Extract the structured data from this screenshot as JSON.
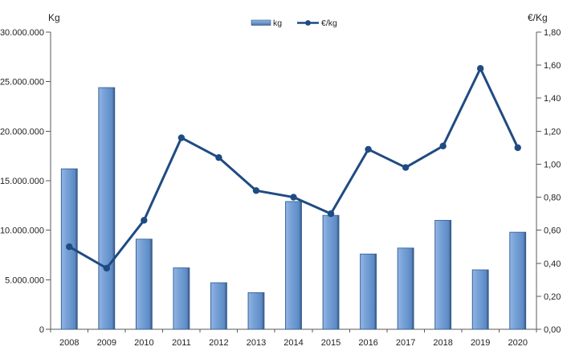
{
  "chart_data": {
    "type": "bar+line combo",
    "categories": [
      "2008",
      "2009",
      "2010",
      "2011",
      "2012",
      "2013",
      "2014",
      "2015",
      "2016",
      "2017",
      "2018",
      "2019",
      "2020"
    ],
    "series": [
      {
        "name": "kg",
        "type": "bar",
        "axis": "left",
        "values": [
          16200000,
          24400000,
          9100000,
          6200000,
          4700000,
          3700000,
          12900000,
          11500000,
          7600000,
          8200000,
          11000000,
          6000000,
          9800000
        ]
      },
      {
        "name": "€/kg",
        "type": "line",
        "axis": "right",
        "values": [
          0.5,
          0.37,
          0.66,
          1.16,
          1.04,
          0.84,
          0.8,
          0.7,
          1.09,
          0.98,
          1.11,
          1.58,
          1.1
        ]
      }
    ],
    "left_axis": {
      "title": "Kg",
      "min": 0,
      "max": 30000000,
      "step": 5000000,
      "tick_labels_top_to_bottom": [
        "30.000.000",
        "25.000.000",
        "20.000.000",
        "15.000.000",
        "10.000.000",
        "5.000.000",
        "0"
      ]
    },
    "right_axis": {
      "title": "€/Kg",
      "min": 0,
      "max": 1.8,
      "step": 0.2,
      "tick_labels_top_to_bottom": [
        "1,80",
        "1,60",
        "1,40",
        "1,20",
        "1,00",
        "0,80",
        "0,60",
        "0,40",
        "0,20",
        "0,00"
      ]
    },
    "legend_position": "top-center",
    "grid": "off",
    "colors": {
      "bar_fill": "#6e9ad2",
      "bar_fill_highlight": "#8fb3e3",
      "bar_edge": "#2e5a8f",
      "line": "#1f4b82",
      "axis_line": "#595959",
      "label_text": "#1f1f1f",
      "background": "#ffffff"
    }
  }
}
